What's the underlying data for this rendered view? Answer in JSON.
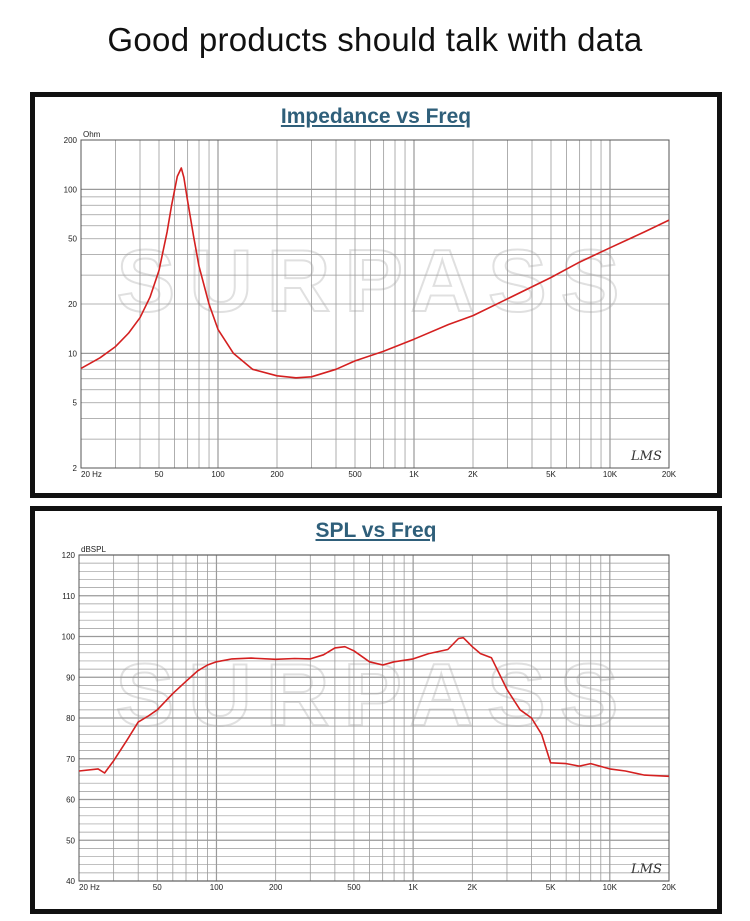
{
  "header": {
    "title": "Good products should talk with data"
  },
  "watermark": "SURPASS",
  "brand_mark": "LMS",
  "colors": {
    "curve": "#d42020",
    "grid": "#9a9a9a",
    "title": "#2f5f7a",
    "frame": "#111111"
  },
  "chart_data": [
    {
      "type": "line",
      "title": "Impedance vs Freq",
      "ylabel": "Ohm",
      "xlabel": "",
      "xscale": "log",
      "yscale": "log",
      "xlim": [
        20,
        20000
      ],
      "ylim": [
        2,
        200
      ],
      "x_ticks": [
        {
          "v": 20,
          "label": "20  Hz"
        },
        {
          "v": 50,
          "label": "50"
        },
        {
          "v": 100,
          "label": "100"
        },
        {
          "v": 200,
          "label": "200"
        },
        {
          "v": 500,
          "label": "500"
        },
        {
          "v": 1000,
          "label": "1K"
        },
        {
          "v": 2000,
          "label": "2K"
        },
        {
          "v": 5000,
          "label": "5K"
        },
        {
          "v": 10000,
          "label": "10K"
        },
        {
          "v": 20000,
          "label": "20K"
        }
      ],
      "y_ticks": [
        {
          "v": 200,
          "label": "200"
        },
        {
          "v": 100,
          "label": "100"
        },
        {
          "v": 50,
          "label": "50"
        },
        {
          "v": 20,
          "label": "20"
        },
        {
          "v": 10,
          "label": "10"
        },
        {
          "v": 5,
          "label": "5"
        },
        {
          "v": 2,
          "label": "2"
        }
      ],
      "grid": true,
      "series": [
        {
          "x": [
            20,
            25,
            30,
            35,
            40,
            45,
            50,
            55,
            58,
            62,
            65,
            67,
            70,
            75,
            80,
            90,
            100,
            120,
            150,
            200,
            250,
            300,
            400,
            500,
            700,
            1000,
            1500,
            2000,
            3000,
            5000,
            7000,
            10000,
            15000,
            20000
          ],
          "y": [
            8.1,
            9.4,
            11.0,
            13.3,
            16.5,
            22.0,
            32.0,
            55.0,
            80.0,
            120.0,
            135.0,
            118.0,
            85.0,
            52.0,
            34.0,
            20.0,
            14.0,
            10.0,
            8.0,
            7.3,
            7.1,
            7.2,
            8.0,
            9.0,
            10.3,
            12.2,
            15.0,
            17.0,
            21.5,
            29.0,
            36.0,
            44.0,
            55.0,
            65.0
          ]
        }
      ]
    },
    {
      "type": "line",
      "title": "SPL vs Freq",
      "ylabel": "dBSPL",
      "xlabel": "",
      "xscale": "log",
      "xlim": [
        20,
        20000
      ],
      "ylim": [
        40,
        120
      ],
      "x_ticks": [
        {
          "v": 20,
          "label": "20  Hz"
        },
        {
          "v": 50,
          "label": "50"
        },
        {
          "v": 100,
          "label": "100"
        },
        {
          "v": 200,
          "label": "200"
        },
        {
          "v": 500,
          "label": "500"
        },
        {
          "v": 1000,
          "label": "1K"
        },
        {
          "v": 2000,
          "label": "2K"
        },
        {
          "v": 5000,
          "label": "5K"
        },
        {
          "v": 10000,
          "label": "10K"
        },
        {
          "v": 20000,
          "label": "20K"
        }
      ],
      "y_ticks": [
        {
          "v": 120,
          "label": "120"
        },
        {
          "v": 110,
          "label": "110"
        },
        {
          "v": 100,
          "label": "100"
        },
        {
          "v": 90,
          "label": "90"
        },
        {
          "v": 80,
          "label": "80"
        },
        {
          "v": 70,
          "label": "70"
        },
        {
          "v": 60,
          "label": "60"
        },
        {
          "v": 50,
          "label": "50"
        },
        {
          "v": 40,
          "label": "40"
        }
      ],
      "grid": true,
      "series": [
        {
          "x": [
            20,
            25,
            27,
            30,
            35,
            40,
            45,
            50,
            60,
            70,
            80,
            90,
            100,
            120,
            150,
            200,
            250,
            300,
            350,
            400,
            450,
            500,
            600,
            700,
            800,
            1000,
            1200,
            1500,
            1700,
            1800,
            2000,
            2200,
            2500,
            3000,
            3500,
            4000,
            4500,
            5000,
            6000,
            7000,
            8000,
            10000,
            12000,
            15000,
            20000
          ],
          "y": [
            67.0,
            67.5,
            66.5,
            69.5,
            74.5,
            79.0,
            80.5,
            82.0,
            86.0,
            89.0,
            91.5,
            93.0,
            93.8,
            94.5,
            94.7,
            94.4,
            94.6,
            94.5,
            95.5,
            97.2,
            97.5,
            96.5,
            93.8,
            93.0,
            93.8,
            94.5,
            95.8,
            96.8,
            99.5,
            99.7,
            97.5,
            95.8,
            94.8,
            87.0,
            82.0,
            80.0,
            76.0,
            69.0,
            68.8,
            68.2,
            68.8,
            67.5,
            67.0,
            66.0,
            65.7
          ]
        }
      ]
    }
  ]
}
